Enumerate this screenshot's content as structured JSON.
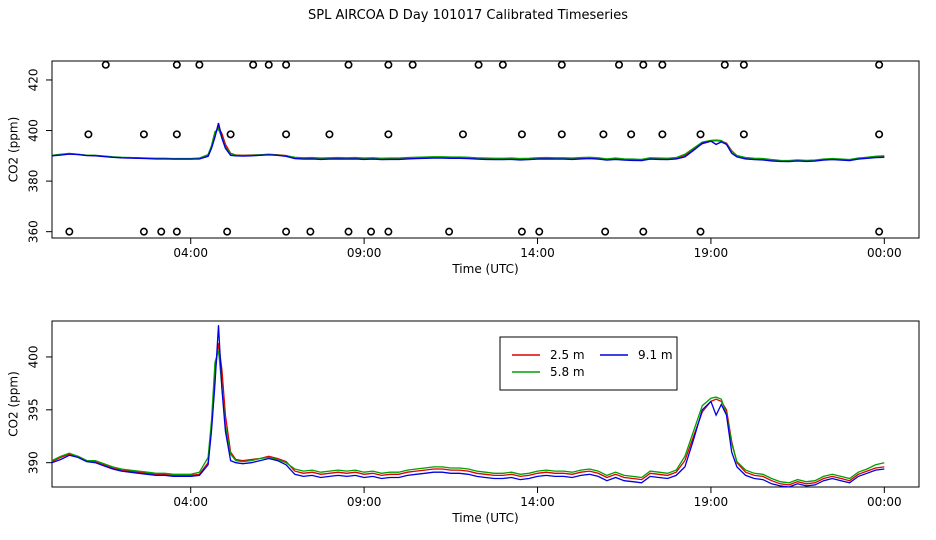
{
  "title": "SPL AIRCOA D  Day 101017  Calibrated Timeseries",
  "colors": {
    "s25": "#e00000",
    "s58": "#00a000",
    "s91": "#0000e0",
    "frame": "#000000",
    "marker": "#000000"
  },
  "chart_data": [
    {
      "type": "scatter+line",
      "name": "top",
      "xlabel": "Time (UTC)",
      "ylabel": "CO2 (ppm)",
      "xlim": [
        0,
        25
      ],
      "ylim": [
        357.5,
        427.5
      ],
      "xticks": [
        4,
        9,
        14,
        19,
        24
      ],
      "xtick_labels": [
        "04:00",
        "09:00",
        "14:00",
        "19:00",
        "00:00"
      ],
      "yticks": [
        360,
        380,
        400,
        420
      ],
      "ytick_labels": [
        "360",
        "380",
        "400",
        "420"
      ],
      "cal_points": {
        "x": [
          0.5,
          1.05,
          1.55,
          2.65,
          2.65,
          3.15,
          3.6,
          3.6,
          3.6,
          4.25,
          5.05,
          5.15,
          5.8,
          6.25,
          6.75,
          6.75,
          6.75,
          7.45,
          8.0,
          8.55,
          8.55,
          9.2,
          9.7,
          9.7,
          9.7,
          10.4,
          11.45,
          11.85,
          12.3,
          13.0,
          13.55,
          13.55,
          14.05,
          14.7,
          14.7,
          15.9,
          15.95,
          16.35,
          16.7,
          17.05,
          17.05,
          17.6,
          17.6,
          18.7,
          18.7,
          19.4,
          19.95,
          19.95,
          23.85,
          23.85,
          23.85
        ],
        "y": [
          360,
          398.5,
          426,
          398.5,
          360,
          360,
          398.5,
          426,
          360,
          426,
          360,
          398.5,
          426,
          426,
          398.5,
          360,
          426,
          360,
          398.5,
          426,
          360,
          360,
          426,
          398.5,
          360,
          426,
          360,
          398.5,
          426,
          426,
          398.5,
          360,
          360,
          398.5,
          426,
          398.5,
          360,
          426,
          398.5,
          426,
          360,
          398.5,
          426,
          360,
          398.5,
          426,
          398.5,
          426,
          360,
          398.5,
          426
        ]
      },
      "legend": null
    },
    {
      "type": "line",
      "name": "bottom",
      "xlabel": "Time (UTC)",
      "ylabel": "CO2 (ppm)",
      "xlim": [
        0,
        25
      ],
      "ylim": [
        387.7,
        403.4
      ],
      "xticks": [
        4,
        9,
        14,
        19,
        24
      ],
      "xtick_labels": [
        "04:00",
        "09:00",
        "14:00",
        "19:00",
        "00:00"
      ],
      "yticks": [
        390,
        395,
        400
      ],
      "ytick_labels": [
        "390",
        "395",
        "400"
      ],
      "legend": {
        "placement": "top-right-center",
        "entries": [
          {
            "label": "2.5 m",
            "color": "#e00000"
          },
          {
            "label": "9.1 m",
            "color": "#0000e0"
          },
          {
            "label": "5.8 m",
            "color": "#00a000"
          }
        ]
      }
    }
  ],
  "series": {
    "x": [
      0,
      0.25,
      0.5,
      0.75,
      1.0,
      1.25,
      1.5,
      1.75,
      2.0,
      2.25,
      2.5,
      2.75,
      3.0,
      3.25,
      3.5,
      3.75,
      4.0,
      4.25,
      4.5,
      4.6,
      4.7,
      4.8,
      4.9,
      5.0,
      5.15,
      5.3,
      5.5,
      5.75,
      6.0,
      6.25,
      6.5,
      6.75,
      7.0,
      7.25,
      7.5,
      7.75,
      8.0,
      8.25,
      8.5,
      8.75,
      9.0,
      9.25,
      9.5,
      9.75,
      10.0,
      10.25,
      10.5,
      10.75,
      11.0,
      11.25,
      11.5,
      11.75,
      12.0,
      12.25,
      12.5,
      12.75,
      13.0,
      13.25,
      13.5,
      13.75,
      14.0,
      14.25,
      14.5,
      14.75,
      15.0,
      15.25,
      15.5,
      15.75,
      16.0,
      16.25,
      16.5,
      16.75,
      17.0,
      17.25,
      17.5,
      17.75,
      18.0,
      18.25,
      18.5,
      18.75,
      19.0,
      19.15,
      19.3,
      19.45,
      19.6,
      19.75,
      20.0,
      20.25,
      20.5,
      20.75,
      21.0,
      21.25,
      21.5,
      21.75,
      22.0,
      22.25,
      22.5,
      22.75,
      23.0,
      23.25,
      23.5,
      23.75,
      24.0
    ],
    "s25": [
      390.1,
      390.5,
      390.8,
      390.6,
      390.2,
      390.1,
      389.8,
      389.5,
      389.3,
      389.2,
      389.1,
      389.0,
      388.9,
      388.9,
      388.8,
      388.8,
      388.8,
      388.9,
      390.0,
      393.5,
      398.5,
      401.3,
      398.8,
      394.5,
      391.0,
      390.3,
      390.2,
      390.3,
      390.4,
      390.6,
      390.4,
      390.1,
      389.2,
      389.0,
      389.1,
      388.9,
      389.0,
      389.1,
      389.0,
      389.1,
      388.9,
      389.0,
      388.8,
      388.9,
      388.9,
      389.1,
      389.2,
      389.3,
      389.4,
      389.4,
      389.3,
      389.3,
      389.2,
      389.0,
      388.9,
      388.8,
      388.8,
      388.9,
      388.7,
      388.8,
      389.0,
      389.1,
      389.0,
      389.0,
      388.9,
      389.1,
      389.2,
      389.0,
      388.6,
      388.9,
      388.6,
      388.5,
      388.4,
      389.0,
      388.9,
      388.8,
      389.1,
      390.2,
      392.5,
      394.8,
      395.8,
      396.0,
      395.8,
      395.0,
      392.0,
      390.0,
      389.1,
      388.8,
      388.7,
      388.3,
      388.0,
      387.9,
      388.2,
      388.0,
      388.1,
      388.5,
      388.7,
      388.5,
      388.3,
      388.9,
      389.2,
      389.5,
      389.6
    ],
    "s58": [
      390.2,
      390.6,
      390.9,
      390.6,
      390.2,
      390.2,
      389.9,
      389.6,
      389.4,
      389.3,
      389.2,
      389.1,
      389.0,
      389.0,
      388.9,
      388.9,
      388.9,
      389.1,
      390.5,
      394.0,
      399.5,
      400.6,
      397.2,
      393.5,
      390.8,
      390.2,
      390.1,
      390.2,
      390.4,
      390.5,
      390.3,
      390.0,
      389.4,
      389.2,
      389.3,
      389.1,
      389.2,
      389.3,
      389.2,
      389.3,
      389.1,
      389.2,
      389.0,
      389.1,
      389.1,
      389.3,
      389.4,
      389.5,
      389.6,
      389.6,
      389.5,
      389.5,
      389.4,
      389.2,
      389.1,
      389.0,
      389.0,
      389.1,
      388.9,
      389.0,
      389.2,
      389.3,
      389.2,
      389.2,
      389.1,
      389.3,
      389.4,
      389.2,
      388.8,
      389.1,
      388.8,
      388.7,
      388.6,
      389.2,
      389.1,
      389.0,
      389.3,
      390.6,
      393.0,
      395.4,
      396.1,
      396.2,
      396.0,
      394.6,
      391.8,
      390.1,
      389.3,
      389.0,
      388.9,
      388.5,
      388.2,
      388.1,
      388.4,
      388.2,
      388.3,
      388.7,
      388.9,
      388.7,
      388.5,
      389.1,
      389.4,
      389.8,
      390.0
    ],
    "s91": [
      390.0,
      390.3,
      390.7,
      390.5,
      390.1,
      390.0,
      389.7,
      389.4,
      389.2,
      389.1,
      389.0,
      388.9,
      388.8,
      388.8,
      388.7,
      388.7,
      388.7,
      388.8,
      389.8,
      393.0,
      397.5,
      403.0,
      397.0,
      393.0,
      390.2,
      390.0,
      389.9,
      390.0,
      390.2,
      390.4,
      390.2,
      389.8,
      388.9,
      388.7,
      388.8,
      388.6,
      388.7,
      388.8,
      388.7,
      388.8,
      388.6,
      388.7,
      388.5,
      388.6,
      388.6,
      388.8,
      388.9,
      389.0,
      389.1,
      389.1,
      389.0,
      389.0,
      388.9,
      388.7,
      388.6,
      388.5,
      388.5,
      388.6,
      388.4,
      388.5,
      388.7,
      388.8,
      388.7,
      388.7,
      388.6,
      388.8,
      388.9,
      388.7,
      388.3,
      388.6,
      388.3,
      388.2,
      388.1,
      388.7,
      388.6,
      388.5,
      388.8,
      389.6,
      392.2,
      395.0,
      395.8,
      394.5,
      395.5,
      394.5,
      391.0,
      389.6,
      388.8,
      388.5,
      388.4,
      388.0,
      387.8,
      387.7,
      388.0,
      387.8,
      387.9,
      388.3,
      388.5,
      388.3,
      388.1,
      388.7,
      389.0,
      389.3,
      389.4
    ]
  }
}
